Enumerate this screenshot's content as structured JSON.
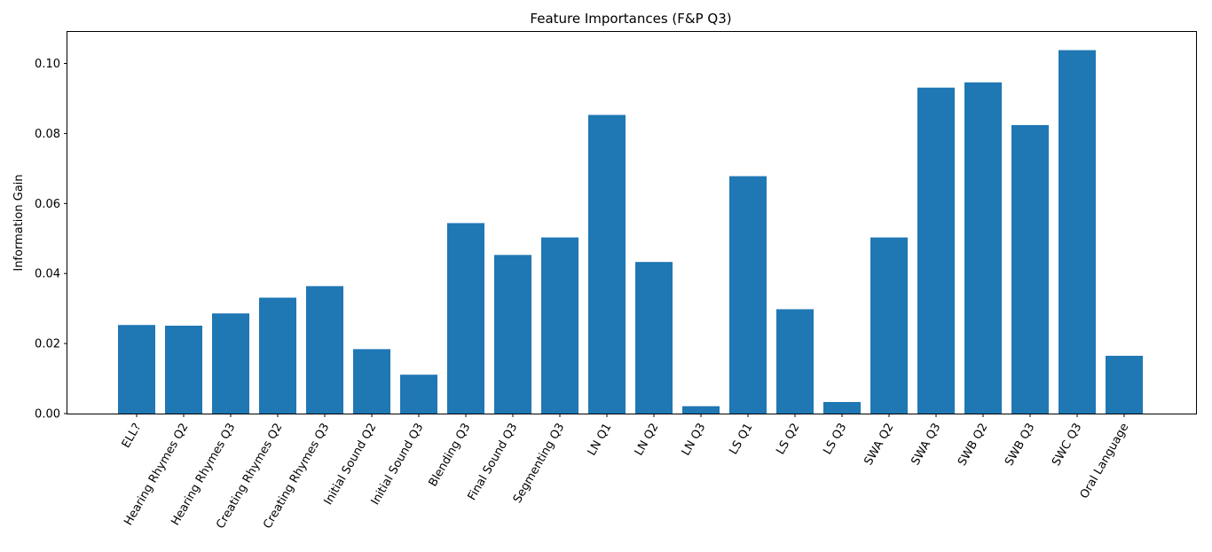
{
  "chart_data": {
    "type": "bar",
    "title": "Feature Importances (F&P Q3)",
    "xlabel": "",
    "ylabel": "Information Gain",
    "ylim": [
      0,
      0.109
    ],
    "yticks": [
      0.0,
      0.02,
      0.04,
      0.06,
      0.08,
      0.1
    ],
    "ytick_labels": [
      "0.00",
      "0.02",
      "0.04",
      "0.06",
      "0.08",
      "0.10"
    ],
    "grid": false,
    "bar_color": "#1f77b4",
    "categories": [
      "ELL?",
      "Hearing Rhymes Q2",
      "Hearing Rhymes Q3",
      "Creating Rhymes Q2",
      "Creating Rhymes Q3",
      "Initial Sound Q2",
      "Initial Sound Q3",
      "Blending Q3",
      "Final Sound Q3",
      "Segmenting Q3",
      "LN Q1",
      "LN Q2",
      "LN Q3",
      "LS Q1",
      "LS Q2",
      "LS Q3",
      "SWA Q2",
      "SWA Q3",
      "SWB Q2",
      "SWB Q3",
      "SWC Q3",
      "Oral Language"
    ],
    "values": [
      0.0253,
      0.0251,
      0.0286,
      0.0331,
      0.0364,
      0.0184,
      0.0111,
      0.0544,
      0.0453,
      0.0503,
      0.0853,
      0.0433,
      0.0021,
      0.0678,
      0.0298,
      0.0033,
      0.0503,
      0.0931,
      0.0946,
      0.0824,
      0.1038,
      0.0165
    ]
  }
}
